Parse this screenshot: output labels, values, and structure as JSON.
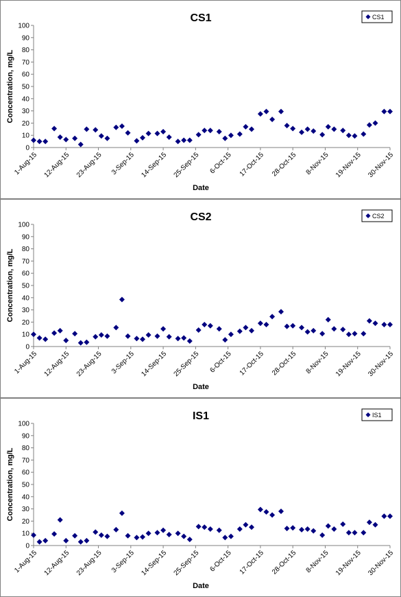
{
  "x_tick_labels": [
    "1-Aug-15",
    "12-Aug-15",
    "23-Aug-15",
    "3-Sep-15",
    "14-Sep-15",
    "25-Sep-15",
    "6-Oct-15",
    "17-Oct-15",
    "28-Oct-15",
    "8-Nov-15",
    "19-Nov-15",
    "30-Nov-15"
  ],
  "colors": {
    "marker": "#000080",
    "axis": "#808080",
    "text": "#000000",
    "border": "#808080"
  },
  "chart_data": [
    {
      "type": "scatter",
      "title": "CS1",
      "legend": {
        "label": "CS1",
        "position": "top-right"
      },
      "xlabel": "Date",
      "ylabel": "Concentration, mg/L",
      "ylim": [
        0,
        100
      ],
      "yticks": [
        0,
        10,
        20,
        30,
        40,
        50,
        60,
        70,
        80,
        90,
        100
      ],
      "xlim": [
        "2015-08-01",
        "2015-11-30"
      ],
      "grid": false,
      "series": [
        {
          "name": "CS1",
          "x": [
            "2015-08-01",
            "2015-08-03",
            "2015-08-05",
            "2015-08-08",
            "2015-08-10",
            "2015-08-12",
            "2015-08-15",
            "2015-08-17",
            "2015-08-19",
            "2015-08-22",
            "2015-08-24",
            "2015-08-26",
            "2015-08-29",
            "2015-08-31",
            "2015-09-02",
            "2015-09-05",
            "2015-09-07",
            "2015-09-09",
            "2015-09-12",
            "2015-09-14",
            "2015-09-16",
            "2015-09-19",
            "2015-09-21",
            "2015-09-23",
            "2015-09-26",
            "2015-09-28",
            "2015-09-30",
            "2015-10-03",
            "2015-10-05",
            "2015-10-07",
            "2015-10-10",
            "2015-10-12",
            "2015-10-14",
            "2015-10-17",
            "2015-10-19",
            "2015-10-21",
            "2015-10-24",
            "2015-10-26",
            "2015-10-28",
            "2015-10-31",
            "2015-11-02",
            "2015-11-04",
            "2015-11-07",
            "2015-11-09",
            "2015-11-11",
            "2015-11-14",
            "2015-11-16",
            "2015-11-18",
            "2015-11-21",
            "2015-11-23",
            "2015-11-25",
            "2015-11-28",
            "2015-11-30"
          ],
          "y": [
            6,
            5,
            5,
            15.5,
            8.5,
            6.5,
            7.5,
            2.5,
            15,
            14.5,
            9.5,
            7.5,
            16.5,
            17.5,
            12,
            5.5,
            8,
            11.5,
            11.5,
            13,
            8.5,
            5,
            6,
            6,
            10.5,
            14,
            14,
            13,
            7.5,
            10,
            11,
            17,
            15,
            27.5,
            29.5,
            23,
            29.5,
            18,
            15.5,
            12.5,
            15,
            13.5,
            10.5,
            17,
            15,
            14,
            10,
            9.5,
            11,
            18.5,
            20,
            29.5,
            29.5
          ]
        }
      ]
    },
    {
      "type": "scatter",
      "title": "CS2",
      "legend": {
        "label": "CS2",
        "position": "top-right"
      },
      "xlabel": "Date",
      "ylabel": "Concentration, mg/L",
      "ylim": [
        0,
        100
      ],
      "yticks": [
        0,
        10,
        20,
        30,
        40,
        50,
        60,
        70,
        80,
        90,
        100
      ],
      "xlim": [
        "2015-08-01",
        "2015-11-30"
      ],
      "grid": false,
      "series": [
        {
          "name": "CS2",
          "x": [
            "2015-08-01",
            "2015-08-03",
            "2015-08-05",
            "2015-08-08",
            "2015-08-10",
            "2015-08-12",
            "2015-08-15",
            "2015-08-17",
            "2015-08-19",
            "2015-08-22",
            "2015-08-24",
            "2015-08-26",
            "2015-08-29",
            "2015-08-31",
            "2015-09-02",
            "2015-09-05",
            "2015-09-07",
            "2015-09-09",
            "2015-09-12",
            "2015-09-14",
            "2015-09-16",
            "2015-09-19",
            "2015-09-21",
            "2015-09-23",
            "2015-09-26",
            "2015-09-28",
            "2015-09-30",
            "2015-10-03",
            "2015-10-05",
            "2015-10-07",
            "2015-10-10",
            "2015-10-12",
            "2015-10-14",
            "2015-10-17",
            "2015-10-19",
            "2015-10-21",
            "2015-10-24",
            "2015-10-26",
            "2015-10-28",
            "2015-10-31",
            "2015-11-02",
            "2015-11-04",
            "2015-11-07",
            "2015-11-09",
            "2015-11-11",
            "2015-11-14",
            "2015-11-16",
            "2015-11-18",
            "2015-11-21",
            "2015-11-23",
            "2015-11-25",
            "2015-11-28",
            "2015-11-30"
          ],
          "y": [
            10,
            7,
            6,
            11,
            13,
            5,
            10.5,
            3,
            3.5,
            8,
            9.5,
            8.5,
            15.5,
            38.5,
            8.5,
            6.5,
            6,
            9.5,
            8.5,
            14.5,
            8,
            6.5,
            7,
            4.5,
            13.5,
            18,
            17,
            14.5,
            5.5,
            10,
            12.5,
            15.5,
            13,
            19,
            18,
            24.5,
            28.5,
            16.5,
            17,
            15.5,
            12,
            13,
            10.5,
            22,
            14.5,
            14,
            10,
            10.5,
            10.5,
            21,
            19,
            18,
            18
          ]
        }
      ]
    },
    {
      "type": "scatter",
      "title": "IS1",
      "legend": {
        "label": "IS1",
        "position": "top-right"
      },
      "xlabel": "Date",
      "ylabel": "Concentration, mg/L",
      "ylim": [
        0,
        100
      ],
      "yticks": [
        0,
        10,
        20,
        30,
        40,
        50,
        60,
        70,
        80,
        90,
        100
      ],
      "xlim": [
        "2015-08-01",
        "2015-11-30"
      ],
      "grid": false,
      "series": [
        {
          "name": "IS1",
          "x": [
            "2015-08-01",
            "2015-08-03",
            "2015-08-05",
            "2015-08-08",
            "2015-08-10",
            "2015-08-12",
            "2015-08-15",
            "2015-08-17",
            "2015-08-19",
            "2015-08-22",
            "2015-08-24",
            "2015-08-26",
            "2015-08-29",
            "2015-08-31",
            "2015-09-02",
            "2015-09-05",
            "2015-09-07",
            "2015-09-09",
            "2015-09-12",
            "2015-09-14",
            "2015-09-16",
            "2015-09-19",
            "2015-09-21",
            "2015-09-23",
            "2015-09-26",
            "2015-09-28",
            "2015-09-30",
            "2015-10-03",
            "2015-10-05",
            "2015-10-07",
            "2015-10-10",
            "2015-10-12",
            "2015-10-14",
            "2015-10-17",
            "2015-10-19",
            "2015-10-21",
            "2015-10-24",
            "2015-10-26",
            "2015-10-28",
            "2015-10-31",
            "2015-11-02",
            "2015-11-04",
            "2015-11-07",
            "2015-11-09",
            "2015-11-11",
            "2015-11-14",
            "2015-11-16",
            "2015-11-18",
            "2015-11-21",
            "2015-11-23",
            "2015-11-25",
            "2015-11-28",
            "2015-11-30"
          ],
          "y": [
            8.5,
            3,
            4,
            9.5,
            21,
            4,
            8,
            3,
            4,
            11,
            8.5,
            7.5,
            13,
            26.5,
            8,
            6.5,
            7,
            10,
            10.5,
            12.5,
            9,
            10,
            7.5,
            5,
            15.5,
            15,
            13.5,
            12.5,
            6.5,
            7.5,
            13.5,
            17,
            15,
            29.5,
            27.5,
            25,
            28,
            14,
            14.5,
            13,
            13.5,
            12,
            8.5,
            16,
            13.5,
            17.5,
            10.5,
            10.5,
            10.5,
            19,
            17,
            24,
            24
          ]
        }
      ]
    }
  ]
}
